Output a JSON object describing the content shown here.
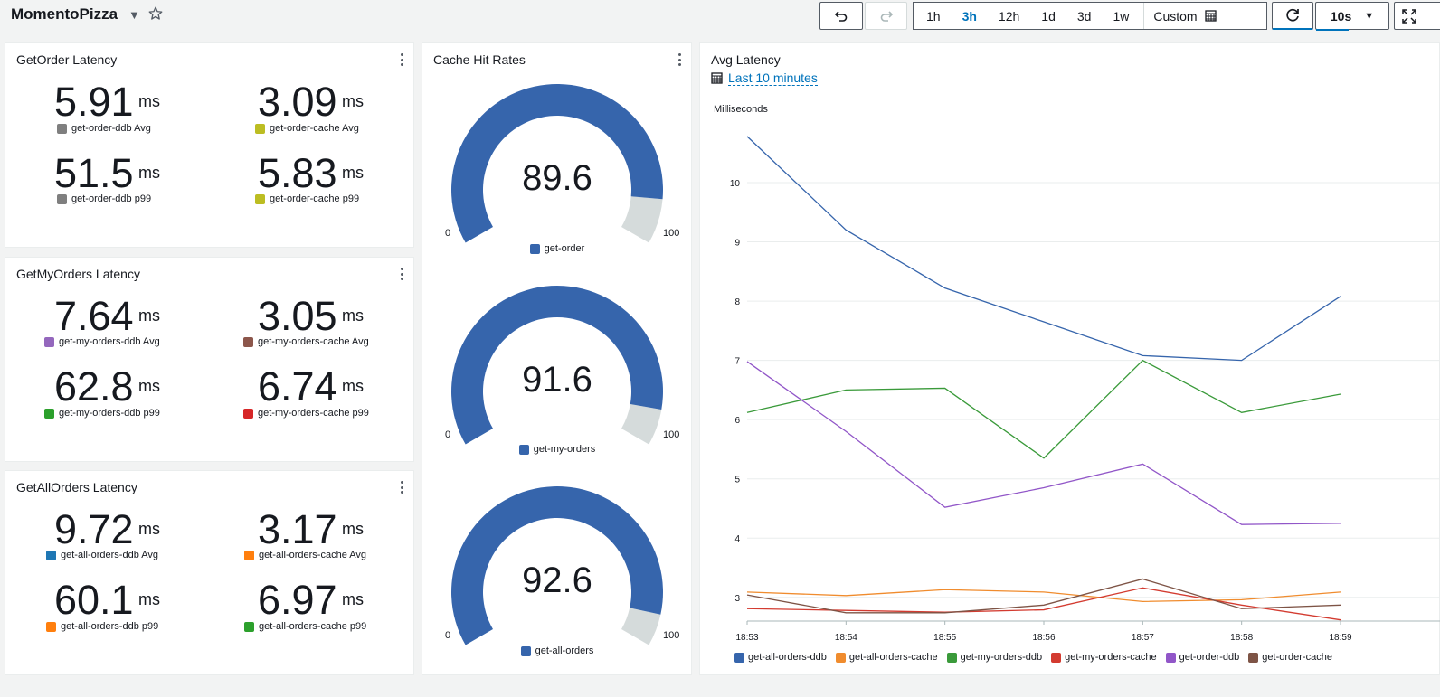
{
  "header": {
    "dashboard_title": "MomentoPizza",
    "time_ranges": [
      "1h",
      "3h",
      "12h",
      "1d",
      "3d",
      "1w"
    ],
    "active_range": "3h",
    "custom_label": "Custom",
    "refresh_interval": "10s"
  },
  "get_order_panel": {
    "title": "GetOrder Latency",
    "metrics": [
      {
        "value": "5.91",
        "unit": "ms",
        "label": "get-order-ddb Avg",
        "color": "#7f7f7f"
      },
      {
        "value": "3.09",
        "unit": "ms",
        "label": "get-order-cache Avg",
        "color": "#bcbd22"
      },
      {
        "value": "51.5",
        "unit": "ms",
        "label": "get-order-ddb p99",
        "color": "#7f7f7f"
      },
      {
        "value": "5.83",
        "unit": "ms",
        "label": "get-order-cache p99",
        "color": "#bcbd22"
      }
    ]
  },
  "get_my_orders_panel": {
    "title": "GetMyOrders Latency",
    "metrics": [
      {
        "value": "7.64",
        "unit": "ms",
        "label": "get-my-orders-ddb Avg",
        "color": "#9467bd"
      },
      {
        "value": "3.05",
        "unit": "ms",
        "label": "get-my-orders-cache Avg",
        "color": "#8c564b"
      },
      {
        "value": "62.8",
        "unit": "ms",
        "label": "get-my-orders-ddb p99",
        "color": "#2ca02c"
      },
      {
        "value": "6.74",
        "unit": "ms",
        "label": "get-my-orders-cache p99",
        "color": "#d62728"
      }
    ]
  },
  "get_all_orders_panel": {
    "title": "GetAllOrders Latency",
    "metrics": [
      {
        "value": "9.72",
        "unit": "ms",
        "label": "get-all-orders-ddb Avg",
        "color": "#1f77b4"
      },
      {
        "value": "3.17",
        "unit": "ms",
        "label": "get-all-orders-cache Avg",
        "color": "#ff7f0e"
      },
      {
        "value": "60.1",
        "unit": "ms",
        "label": "get-all-orders-ddb p99",
        "color": "#ff7f0e"
      },
      {
        "value": "6.97",
        "unit": "ms",
        "label": "get-all-orders-cache p99",
        "color": "#2ca02c"
      }
    ]
  },
  "cache_panel": {
    "title": "Cache Hit Rates",
    "gauges": [
      {
        "value": 89.6,
        "label": "get-order",
        "min": "0",
        "max": "100"
      },
      {
        "value": 91.6,
        "label": "get-my-orders",
        "min": "0",
        "max": "100"
      },
      {
        "value": 92.6,
        "label": "get-all-orders",
        "min": "0",
        "max": "100"
      }
    ],
    "gauge_color": "#3665ac",
    "gauge_track_color": "#d5dbdb"
  },
  "latency_panel": {
    "title": "Avg Latency",
    "time_range_link": "Last 10 minutes",
    "y_unit": "Milliseconds"
  },
  "chart_data": {
    "type": "line",
    "title": "Avg Latency",
    "ylabel": "Milliseconds",
    "x": [
      "18:53",
      "18:54",
      "18:55",
      "18:56",
      "18:57",
      "18:58",
      "18:59"
    ],
    "y_ticks": [
      3,
      4,
      5,
      6,
      7,
      8,
      9,
      10
    ],
    "ylim": [
      2.6,
      10.9
    ],
    "grid": true,
    "legend": "bottom",
    "series": [
      {
        "name": "get-all-orders-ddb",
        "color": "#3665ac",
        "values": [
          10.78,
          9.2,
          8.22,
          7.65,
          7.08,
          7.0,
          8.08
        ]
      },
      {
        "name": "get-all-orders-cache",
        "color": "#f08c2e",
        "values": [
          3.09,
          3.03,
          3.13,
          3.09,
          2.93,
          2.96,
          3.09
        ]
      },
      {
        "name": "get-my-orders-ddb",
        "color": "#3a9a3a",
        "values": [
          6.12,
          6.5,
          6.53,
          5.35,
          7.0,
          6.12,
          6.43
        ]
      },
      {
        "name": "get-my-orders-cache",
        "color": "#d33b30",
        "values": [
          2.81,
          2.78,
          2.75,
          2.79,
          3.16,
          2.87,
          2.62
        ]
      },
      {
        "name": "get-order-ddb",
        "color": "#9156c8",
        "values": [
          6.98,
          5.8,
          4.52,
          4.85,
          5.25,
          4.23,
          4.25
        ]
      },
      {
        "name": "get-order-cache",
        "color": "#7e5446",
        "values": [
          3.04,
          2.74,
          2.74,
          2.87,
          3.31,
          2.81,
          2.87
        ]
      }
    ]
  }
}
